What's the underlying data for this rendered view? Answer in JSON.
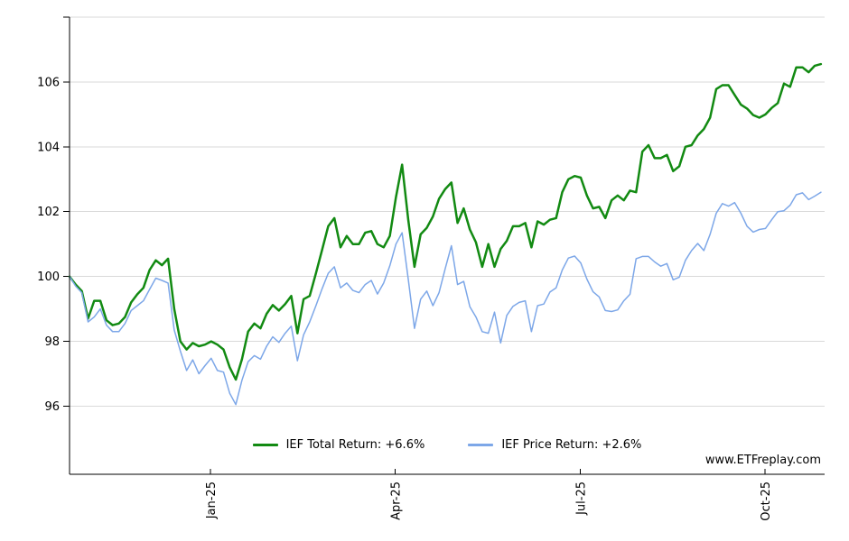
{
  "watermark": "www.ETFreplay.com",
  "colors": {
    "grid": "#d9d9d9",
    "axis": "#000000",
    "total_return_green": "#128a12",
    "price_return_blue": "#7da7e8",
    "background": "#ffffff"
  },
  "chart_data": {
    "type": "line",
    "title": "",
    "xlabel": "",
    "ylabel": "",
    "grid": true,
    "legend_position": "bottom-center",
    "x_unit": "months since Jan-25 tick (0.1-month sampling)",
    "xlim": [
      -2.29,
      9.97
    ],
    "ylim": [
      93.9,
      108
    ],
    "ygrid": [
      96,
      98,
      100,
      102,
      104,
      106,
      108
    ],
    "yticks": [
      {
        "v": 96,
        "label": "96"
      },
      {
        "v": 98,
        "label": "98"
      },
      {
        "v": 100,
        "label": "100"
      },
      {
        "v": 102,
        "label": "102"
      },
      {
        "v": 104,
        "label": "104"
      },
      {
        "v": 106,
        "label": "106"
      }
    ],
    "xticks": [
      {
        "m": 0,
        "label": "Jan-25"
      },
      {
        "m": 3,
        "label": "Apr-25"
      },
      {
        "m": 6,
        "label": "Jul-25"
      },
      {
        "m": 9,
        "label": "Oct-25"
      }
    ],
    "x_start": -2.29,
    "x_step": 0.1,
    "series": [
      {
        "key": "ief-total-return",
        "name": "IEF Total Return: +6.6%",
        "color": "#128a12",
        "width": 2.5,
        "final_value": 106.6,
        "values": [
          100.0,
          99.75,
          99.55,
          98.7,
          99.25,
          99.25,
          98.65,
          98.5,
          98.55,
          98.75,
          99.2,
          99.45,
          99.65,
          100.2,
          100.5,
          100.35,
          100.55,
          99.0,
          98.0,
          97.75,
          97.95,
          97.85,
          97.9,
          98.0,
          97.9,
          97.75,
          97.2,
          96.82,
          97.45,
          98.3,
          98.55,
          98.4,
          98.85,
          99.12,
          98.95,
          99.15,
          99.4,
          98.25,
          99.3,
          99.4,
          100.1,
          100.82,
          101.55,
          101.8,
          100.9,
          101.25,
          101.0,
          101.0,
          101.35,
          101.4,
          101.0,
          100.9,
          101.25,
          102.45,
          103.45,
          101.75,
          100.3,
          101.3,
          101.5,
          101.85,
          102.4,
          102.7,
          102.9,
          101.65,
          102.1,
          101.45,
          101.05,
          100.3,
          101.0,
          100.3,
          100.85,
          101.1,
          101.55,
          101.55,
          101.65,
          100.9,
          101.7,
          101.6,
          101.75,
          101.8,
          102.6,
          103.0,
          103.1,
          103.05,
          102.5,
          102.1,
          102.15,
          101.8,
          102.35,
          102.5,
          102.35,
          102.65,
          102.6,
          103.85,
          104.05,
          103.65,
          103.65,
          103.75,
          103.25,
          103.4,
          104.0,
          104.05,
          104.35,
          104.55,
          104.9,
          105.78,
          105.9,
          105.9,
          105.6,
          105.3,
          105.18,
          104.98,
          104.9,
          105.0,
          105.2,
          105.35,
          105.95,
          105.85,
          106.45,
          106.45,
          106.3,
          106.5,
          106.55
        ]
      },
      {
        "key": "ief-price-return",
        "name": "IEF Price Return: +2.6%",
        "color": "#7da7e8",
        "width": 1.5,
        "final_value": 102.6,
        "values": [
          100.0,
          99.7,
          99.5,
          98.6,
          98.75,
          99.0,
          98.5,
          98.3,
          98.3,
          98.55,
          98.95,
          99.1,
          99.25,
          99.6,
          99.95,
          99.88,
          99.8,
          98.35,
          97.7,
          97.1,
          97.43,
          97.0,
          97.25,
          97.48,
          97.1,
          97.05,
          96.4,
          96.05,
          96.8,
          97.37,
          97.56,
          97.45,
          97.85,
          98.14,
          97.97,
          98.25,
          98.47,
          97.4,
          98.2,
          98.6,
          99.1,
          99.62,
          100.1,
          100.3,
          99.65,
          99.8,
          99.57,
          99.5,
          99.75,
          99.88,
          99.46,
          99.8,
          100.33,
          101.0,
          101.35,
          99.92,
          98.4,
          99.3,
          99.55,
          99.1,
          99.5,
          100.25,
          100.95,
          99.75,
          99.85,
          99.07,
          98.75,
          98.3,
          98.25,
          98.9,
          97.95,
          98.8,
          99.08,
          99.2,
          99.25,
          98.3,
          99.1,
          99.15,
          99.52,
          99.65,
          100.2,
          100.57,
          100.63,
          100.42,
          99.92,
          99.53,
          99.37,
          98.95,
          98.92,
          98.97,
          99.25,
          99.45,
          100.55,
          100.62,
          100.62,
          100.45,
          100.32,
          100.4,
          99.9,
          99.98,
          100.5,
          100.8,
          101.02,
          100.8,
          101.3,
          101.95,
          102.25,
          102.17,
          102.28,
          101.95,
          101.55,
          101.37,
          101.45,
          101.48,
          101.75,
          102.0,
          102.03,
          102.2,
          102.52,
          102.58,
          102.37,
          102.48,
          102.6
        ]
      }
    ]
  }
}
